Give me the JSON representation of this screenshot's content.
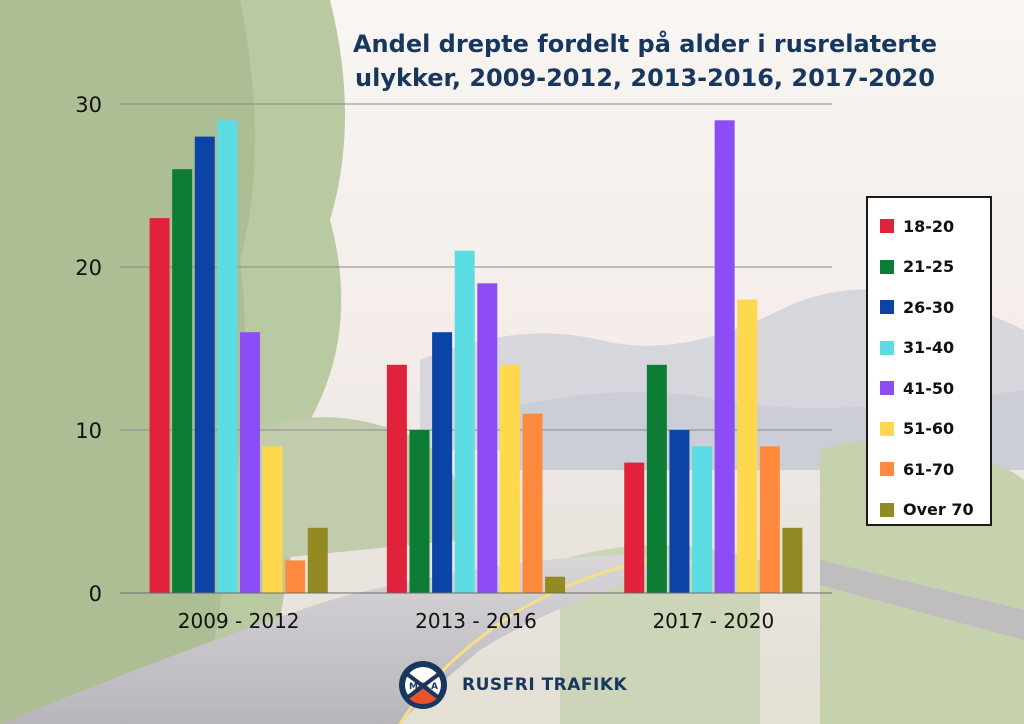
{
  "title": {
    "line1": "Andel drepte fordelt på alder i rusrelaterte",
    "line2": "ulykker, 2009-2012, 2013-2016, 2017-2020"
  },
  "brand": {
    "name": "RUSFRI TRAFIKK",
    "logo_letters": [
      "M",
      "A"
    ],
    "logo_icon": "rusfri-trafikk-logo-icon"
  },
  "chart_data": {
    "type": "bar",
    "title": "Andel drepte fordelt på alder i rusrelaterte ulykker, 2009-2012, 2013-2016, 2017-2020",
    "xlabel": "",
    "ylabel": "",
    "categories": [
      "2009 - 2012",
      "2013 - 2016",
      "2017 - 2020"
    ],
    "ylim": [
      0,
      30
    ],
    "yticks": [
      0,
      10,
      20,
      30
    ],
    "grid": true,
    "legend_position": "right",
    "series": [
      {
        "name": "18-20",
        "color": "#e0223d",
        "values": [
          23,
          14,
          8
        ]
      },
      {
        "name": "21-25",
        "color": "#0d7d36",
        "values": [
          26,
          10,
          14
        ]
      },
      {
        "name": "26-30",
        "color": "#0b44a6",
        "values": [
          28,
          16,
          10
        ]
      },
      {
        "name": "31-40",
        "color": "#5cdde4",
        "values": [
          29,
          21,
          9
        ]
      },
      {
        "name": "41-50",
        "color": "#8c4df5",
        "values": [
          16,
          19,
          29
        ]
      },
      {
        "name": "51-60",
        "color": "#ffd84d",
        "values": [
          9,
          14,
          18
        ]
      },
      {
        "name": "61-70",
        "color": "#ff8a3d",
        "values": [
          2,
          11,
          9
        ]
      },
      {
        "name": "Over 70",
        "color": "#948a24",
        "values": [
          4,
          1,
          4
        ]
      }
    ]
  }
}
